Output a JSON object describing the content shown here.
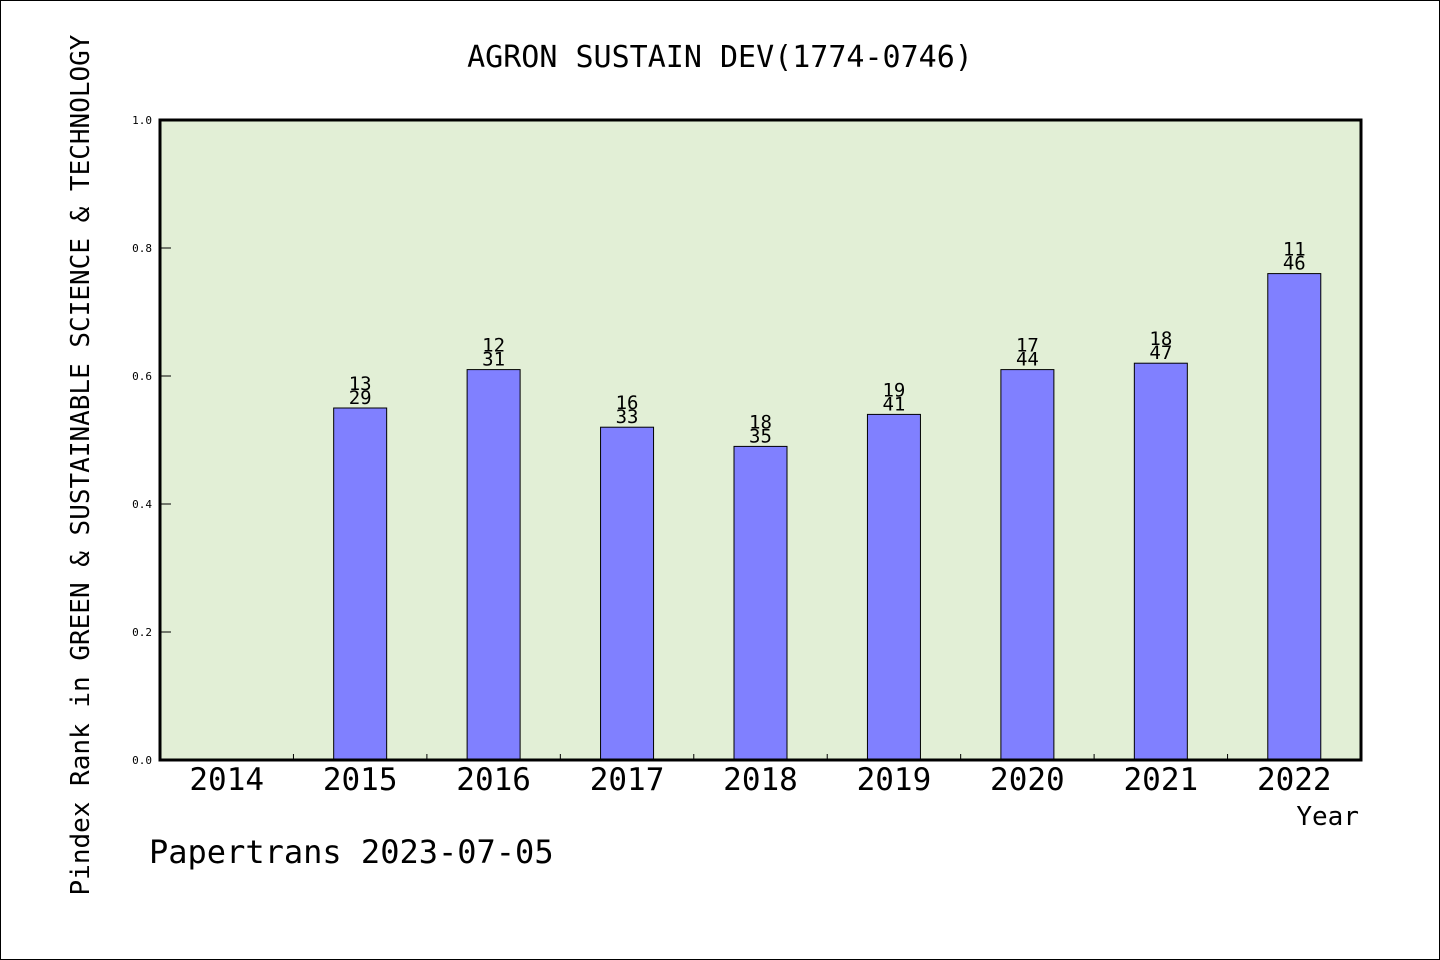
{
  "chart_data": {
    "type": "bar",
    "title": "AGRON SUSTAIN DEV(1774-0746)",
    "ylabel": "Pindex Rank in GREEN & SUSTAINABLE SCIENCE & TECHNOLOGY",
    "xlabel": "Year",
    "ylim": [
      0,
      1.0
    ],
    "yticks": [
      "0.0",
      "0.2",
      "0.4",
      "0.6",
      "0.8",
      "1.0"
    ],
    "grid": false,
    "categories": [
      "2014",
      "2015",
      "2016",
      "2017",
      "2018",
      "2019",
      "2020",
      "2021",
      "2022"
    ],
    "values": [
      null,
      0.55,
      0.61,
      0.52,
      0.49,
      0.54,
      0.61,
      0.62,
      0.76
    ],
    "labels": [
      null,
      [
        "13",
        "29"
      ],
      [
        "12",
        "31"
      ],
      [
        "16",
        "33"
      ],
      [
        "18",
        "35"
      ],
      [
        "19",
        "41"
      ],
      [
        "17",
        "44"
      ],
      [
        "18",
        "47"
      ],
      [
        "11",
        "46"
      ]
    ],
    "colors": {
      "plot_background": "#e2efd6",
      "bar_fill": "#8080ff",
      "axis": "#000000"
    }
  },
  "footer": "Papertrans 2023-07-05"
}
